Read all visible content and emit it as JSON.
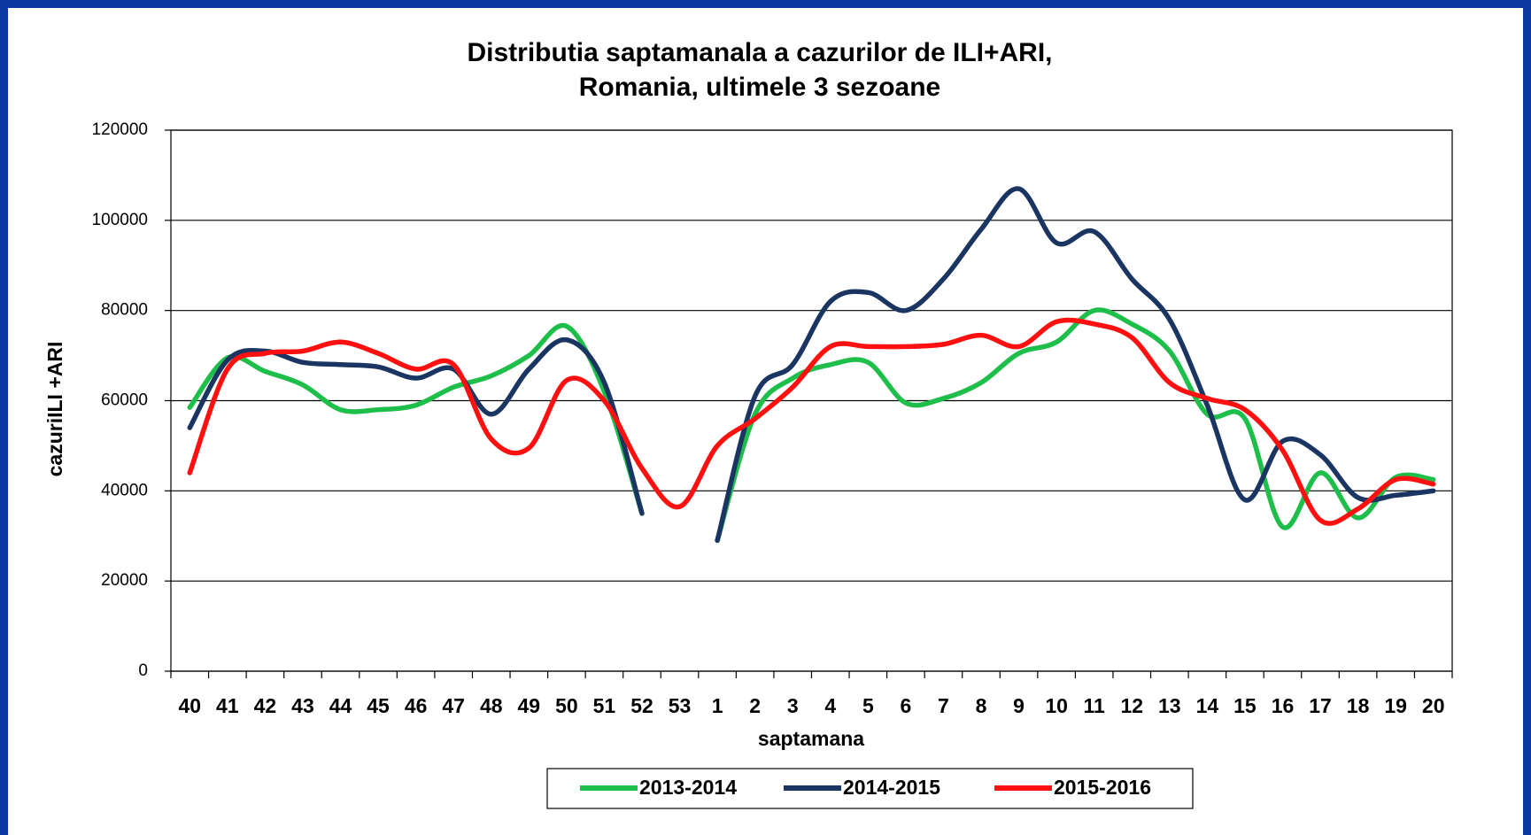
{
  "chart_data": {
    "type": "line",
    "title": [
      "Distributia saptamanala a cazurilor de ILI+ARI,",
      "Romania, ultimele 3 sezoane"
    ],
    "x_label": "saptamana",
    "y_label": "cazuriILI +ARI",
    "categories": [
      "40",
      "41",
      "42",
      "43",
      "44",
      "45",
      "46",
      "47",
      "48",
      "49",
      "50",
      "51",
      "52",
      "53",
      "1",
      "2",
      "3",
      "4",
      "5",
      "6",
      "7",
      "8",
      "9",
      "10",
      "11",
      "12",
      "13",
      "14",
      "15",
      "16",
      "17",
      "18",
      "19",
      "20"
    ],
    "series": [
      {
        "name": "2013-2014",
        "color": "#1ebe4a",
        "values": [
          58500,
          69500,
          66500,
          63500,
          58000,
          58000,
          59000,
          63000,
          65500,
          70000,
          76500,
          62000,
          35000,
          null,
          29000,
          57000,
          65000,
          68000,
          68500,
          59500,
          60500,
          64000,
          70500,
          73000,
          80000,
          77000,
          71000,
          57000,
          56000,
          32000,
          44000,
          34000,
          43000,
          42500
        ]
      },
      {
        "name": "2014-2015",
        "color": "#1b3562",
        "values": [
          54000,
          69000,
          71000,
          68500,
          68000,
          67500,
          65000,
          67000,
          57000,
          67000,
          73500,
          64000,
          35000,
          null,
          29000,
          61000,
          68000,
          82000,
          84000,
          80000,
          87000,
          98000,
          107000,
          95000,
          97500,
          87000,
          78000,
          59000,
          38000,
          51000,
          48000,
          38500,
          39000,
          40000
        ]
      },
      {
        "name": "2015-2016",
        "color": "#ff1010",
        "values": [
          44000,
          67000,
          70500,
          71000,
          73000,
          70500,
          67000,
          68000,
          51500,
          49500,
          64500,
          60000,
          45000,
          36500,
          50000,
          56000,
          63000,
          72000,
          72000,
          72000,
          72500,
          74500,
          72000,
          77500,
          77000,
          74000,
          64000,
          60500,
          58000,
          49000,
          33500,
          36000,
          42500,
          41500
        ]
      }
    ],
    "ylim": [
      0,
      120000
    ],
    "yticks": [
      0,
      20000,
      40000,
      60000,
      80000,
      100000,
      120000
    ],
    "grid": true,
    "legend": "bottom"
  }
}
